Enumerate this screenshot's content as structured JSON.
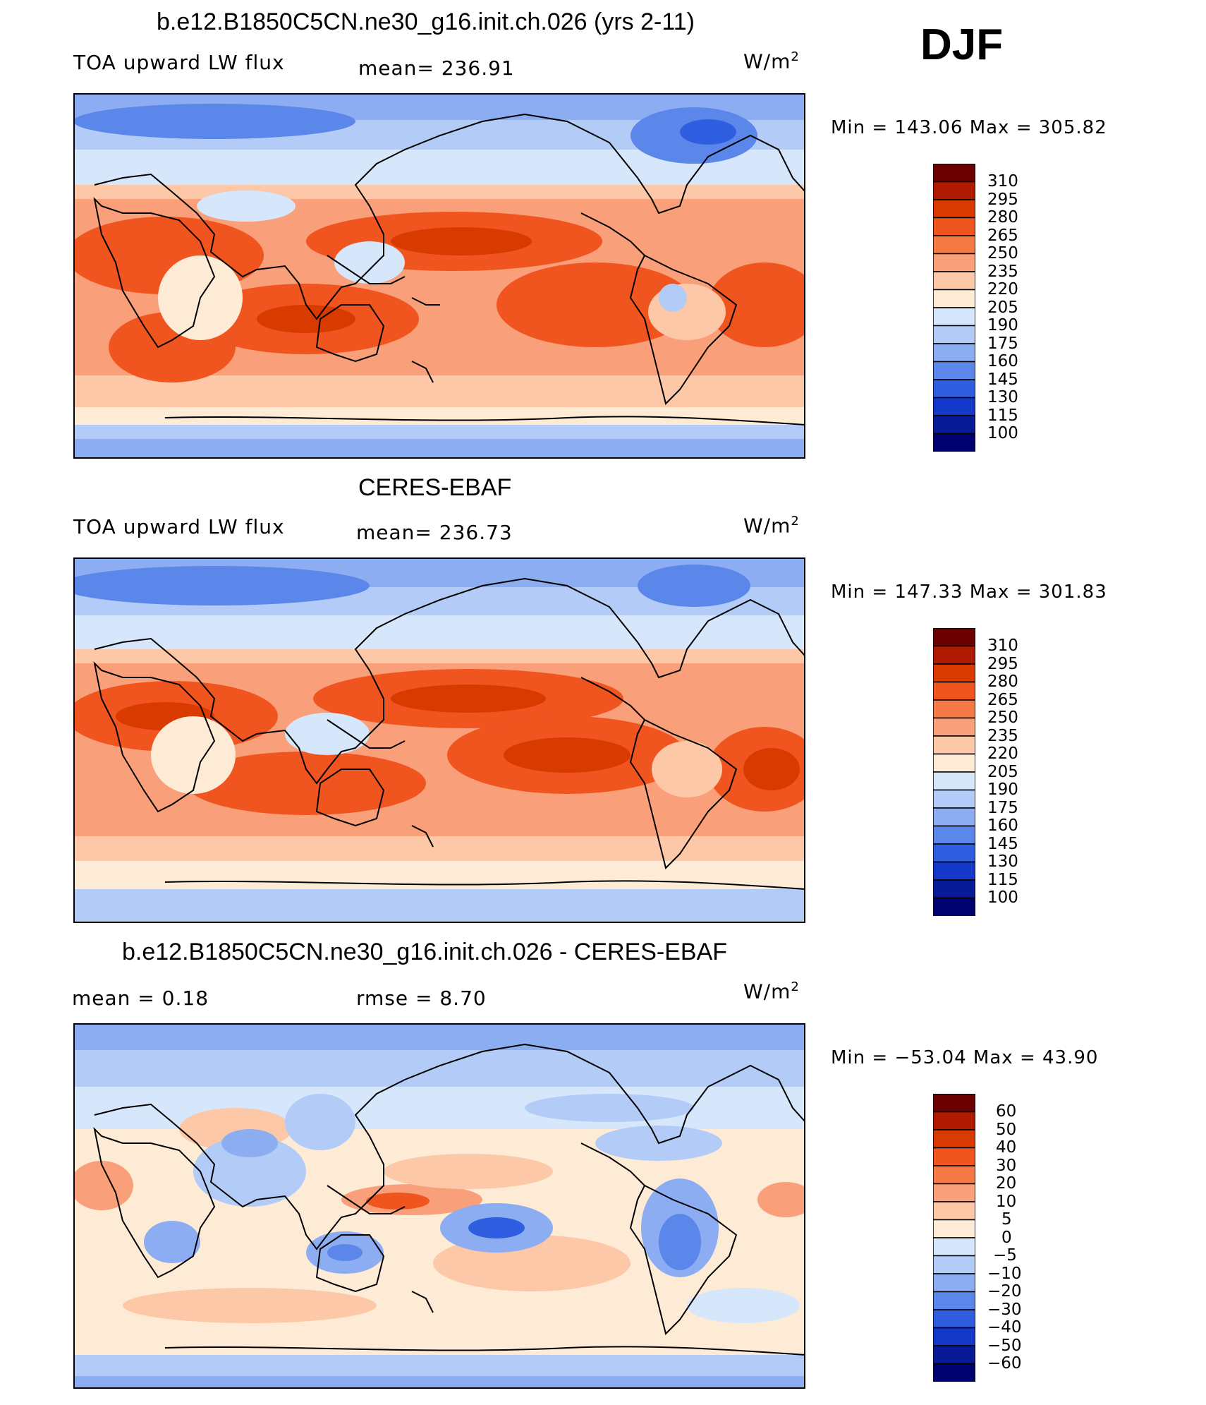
{
  "season": "DJF",
  "panels": [
    {
      "title": "b.e12.B1850C5CN.ne30_g16.init.ch.026 (yrs 2-11)",
      "variable": "TOA upward LW flux",
      "stat1": "mean=  236.91",
      "stat2": "",
      "units": "W/m",
      "units_exp": "2",
      "minmax": "Min  =  143.06  Max  =  305.82",
      "colorbar_labels": [
        "310",
        "295",
        "280",
        "265",
        "250",
        "235",
        "220",
        "205",
        "190",
        "175",
        "160",
        "145",
        "130",
        "115",
        "100"
      ]
    },
    {
      "title": "CERES-EBAF",
      "variable": "TOA upward LW flux",
      "stat1": "mean=  236.73",
      "stat2": "",
      "units": "W/m",
      "units_exp": "2",
      "minmax": "Min  =  147.33  Max  =  301.83",
      "colorbar_labels": [
        "310",
        "295",
        "280",
        "265",
        "250",
        "235",
        "220",
        "205",
        "190",
        "175",
        "160",
        "145",
        "130",
        "115",
        "100"
      ]
    },
    {
      "title": "b.e12.B1850C5CN.ne30_g16.init.ch.026 - CERES-EBAF",
      "variable": "mean =     0.18",
      "stat1": "",
      "stat2": "rmse =     8.70",
      "units": "W/m",
      "units_exp": "2",
      "minmax": "Min  =  −53.04  Max  =    43.90",
      "colorbar_labels": [
        "60",
        "50",
        "40",
        "30",
        "20",
        "10",
        "5",
        "0",
        "−5",
        "−10",
        "−20",
        "−30",
        "−40",
        "−50",
        "−60"
      ]
    }
  ],
  "colors": {
    "scale": [
      "#6b0000",
      "#b01a00",
      "#d93a00",
      "#f05520",
      "#f57a45",
      "#f9a07a",
      "#fdc8a8",
      "#fdebd6",
      "#d6e6fb",
      "#b2ccf7",
      "#8cadf2",
      "#5c87ea",
      "#2f5fe0",
      "#1438c8",
      "#081a96",
      "#000070"
    ]
  }
}
